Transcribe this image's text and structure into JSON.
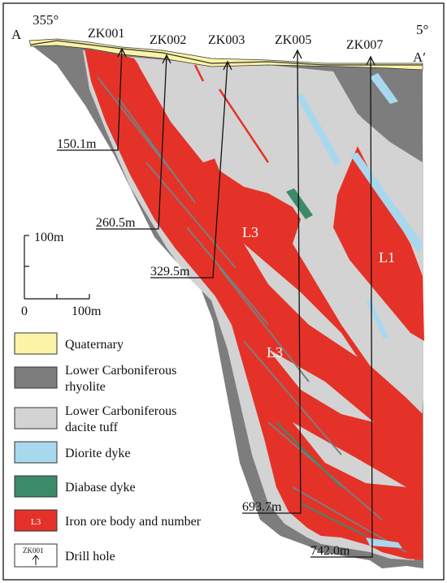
{
  "section": {
    "end_left": "A",
    "end_right": "A′",
    "azimuth_left": "355°",
    "azimuth_right": "5°"
  },
  "drill_holes": [
    {
      "name": "ZK001",
      "depth_label": "150.1m"
    },
    {
      "name": "ZK002",
      "depth_label": "260.5m"
    },
    {
      "name": "ZK003",
      "depth_label": "329.5m"
    },
    {
      "name": "ZK005",
      "depth_label": "693.7m"
    },
    {
      "name": "ZK007",
      "depth_label": "742.0m"
    }
  ],
  "ore_bodies": [
    "L3",
    "L3",
    "L1"
  ],
  "scale": {
    "vertical_label": "100m",
    "horizontal_start": "0",
    "horizontal_end": "100m"
  },
  "legend": [
    {
      "label": "Quaternary",
      "color": "#fbf3a6"
    },
    {
      "label": "Lower Carboniferous",
      "label2": "rhyolite",
      "color": "#7d7d7d"
    },
    {
      "label": "Lower Carboniferous",
      "label2": "dacite tuff",
      "color": "#d4d3d3"
    },
    {
      "label": "Diorite dyke",
      "color": "#a8d8ee"
    },
    {
      "label": "Diabase dyke",
      "color": "#3b8a6a"
    },
    {
      "label": "Iron ore body and number",
      "color": "#e53228",
      "swatch_text": "L3"
    },
    {
      "label": "Drill hole",
      "swatch_text": "ZK001"
    }
  ],
  "colors": {
    "border": "#333333",
    "ore": "#e53228",
    "rhyolite": "#7d7d7d",
    "tuff": "#d4d3d3",
    "diorite": "#a8d8ee",
    "diabase": "#3b8a6a",
    "quaternary": "#fbf3a6"
  }
}
